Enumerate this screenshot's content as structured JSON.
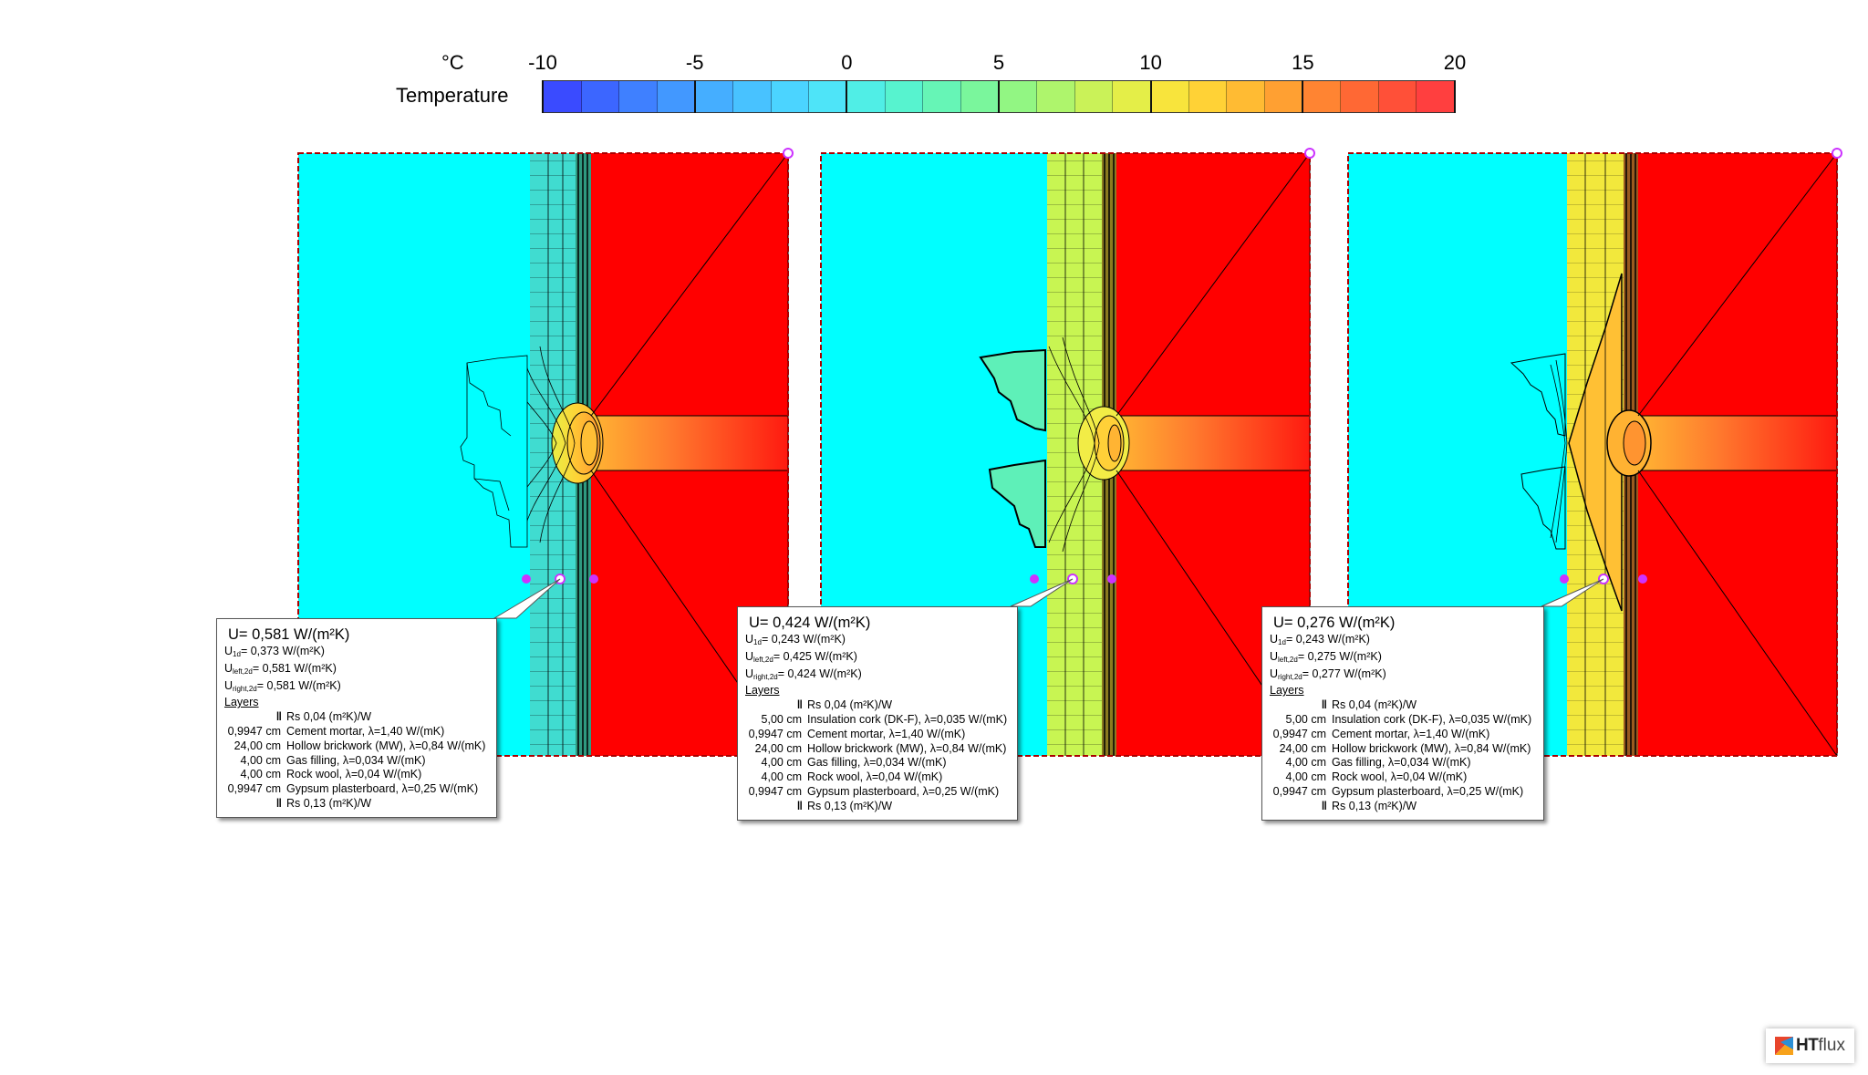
{
  "legend": {
    "unit": "°C",
    "label": "Temperature",
    "ticks": [
      "-10",
      "-5",
      "0",
      "5",
      "10",
      "15",
      "20"
    ],
    "colors": [
      "#3a4bff",
      "#3c66ff",
      "#3f80ff",
      "#4298ff",
      "#45aeff",
      "#48c2ff",
      "#4bd4ff",
      "#4ee4f8",
      "#50eee6",
      "#57f3cf",
      "#66f5b6",
      "#7af69c",
      "#92f683",
      "#aef56c",
      "#caf258",
      "#e4ee48",
      "#f8e43c",
      "#ffd236",
      "#ffbb33",
      "#ffa032",
      "#ff8432",
      "#ff6834",
      "#ff5038",
      "#ff3f3f"
    ]
  },
  "panels": [
    {
      "tooltip": {
        "u_main": "U= 0,581 W/(m²K)",
        "u_1d": "= 0,373 W/(m²K)",
        "u_left": "= 0,581 W/(m²K)",
        "u_right": "= 0,581 W/(m²K)",
        "layers_header": "Layers",
        "layers": [
          {
            "thickness": "‖",
            "text": "Rs 0,04 (m²K)/W"
          },
          {
            "thickness": "0,9947 cm",
            "text": "Cement mortar,  λ=1,40 W/(mK)"
          },
          {
            "thickness": "24,00 cm",
            "text": "Hollow brickwork (MW),  λ=0,84 W/(mK)"
          },
          {
            "thickness": "4,00 cm",
            "text": "Gas filling,  λ=0,034 W/(mK)"
          },
          {
            "thickness": "4,00 cm",
            "text": "Rock wool,  λ=0,04 W/(mK)"
          },
          {
            "thickness": "0,9947 cm",
            "text": "Gypsum plasterboard,  λ=0,25 W/(mK)"
          },
          {
            "thickness": "‖",
            "text": "Rs 0,13 (m²K)/W"
          }
        ]
      }
    },
    {
      "tooltip": {
        "u_main": "U= 0,424 W/(m²K)",
        "u_1d": "= 0,243 W/(m²K)",
        "u_left": "= 0,425 W/(m²K)",
        "u_right": "= 0,424 W/(m²K)",
        "layers_header": "Layers",
        "layers": [
          {
            "thickness": "‖",
            "text": "Rs 0,04 (m²K)/W"
          },
          {
            "thickness": "5,00 cm",
            "text": "Insulation cork (DK-F),  λ=0,035 W/(mK)"
          },
          {
            "thickness": "0,9947 cm",
            "text": "Cement mortar,  λ=1,40 W/(mK)"
          },
          {
            "thickness": "24,00 cm",
            "text": "Hollow brickwork (MW),  λ=0,84 W/(mK)"
          },
          {
            "thickness": "4,00 cm",
            "text": "Gas filling,  λ=0,034 W/(mK)"
          },
          {
            "thickness": "4,00 cm",
            "text": "Rock wool,  λ=0,04 W/(mK)"
          },
          {
            "thickness": "0,9947 cm",
            "text": "Gypsum plasterboard,  λ=0,25 W/(mK)"
          },
          {
            "thickness": "‖",
            "text": "Rs 0,13 (m²K)/W"
          }
        ]
      }
    },
    {
      "tooltip": {
        "u_main": "U= 0,276 W/(m²K)",
        "u_1d": "= 0,243 W/(m²K)",
        "u_left": "= 0,275 W/(m²K)",
        "u_right": "= 0,277 W/(m²K)",
        "layers_header": "Layers",
        "layers": [
          {
            "thickness": "‖",
            "text": "Rs 0,04 (m²K)/W"
          },
          {
            "thickness": "5,00 cm",
            "text": "Insulation cork (DK-F),  λ=0,035 W/(mK)"
          },
          {
            "thickness": "0,9947 cm",
            "text": "Cement mortar,  λ=1,40 W/(mK)"
          },
          {
            "thickness": "24,00 cm",
            "text": "Hollow brickwork (MW),  λ=0,84 W/(mK)"
          },
          {
            "thickness": "4,00 cm",
            "text": "Gas filling,  λ=0,034 W/(mK)"
          },
          {
            "thickness": "4,00 cm",
            "text": "Rock wool,  λ=0,04 W/(mK)"
          },
          {
            "thickness": "0,9947 cm",
            "text": "Gypsum plasterboard,  λ=0,25 W/(mK)"
          },
          {
            "thickness": "‖",
            "text": "Rs 0,13 (m²K)/W"
          }
        ]
      }
    }
  ],
  "subscripts": {
    "one_d": "1d",
    "left": "left,2d",
    "right": "right,2d"
  },
  "logo": {
    "bold": "HT",
    "light": "flux"
  },
  "colors": {
    "outside": "#00ffff",
    "inside": "#ff0000",
    "panel_border": "#cc0000",
    "marker": "#cc33ff"
  }
}
